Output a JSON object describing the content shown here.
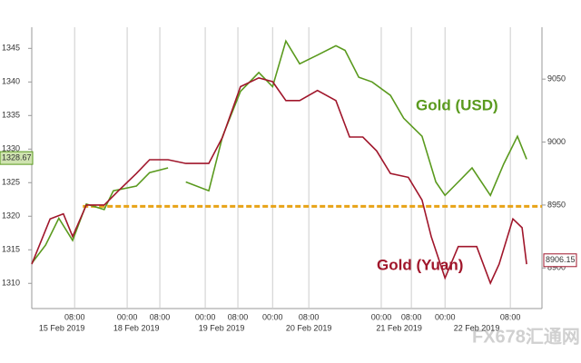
{
  "chart_data": {
    "type": "line",
    "xlim": [
      0,
      100
    ],
    "xticks": [
      {
        "value": 8.4,
        "label": "08:00"
      },
      {
        "value": 18.7,
        "label": "00:00"
      },
      {
        "value": 25.1,
        "label": "08:00"
      },
      {
        "value": 34,
        "label": "00:00"
      },
      {
        "value": 40.4,
        "label": "08:00"
      },
      {
        "value": 47.2,
        "label": "00:00"
      },
      {
        "value": 54.3,
        "label": "08:00"
      },
      {
        "value": 68.5,
        "label": "00:00"
      },
      {
        "value": 74.4,
        "label": "08:00"
      },
      {
        "value": 81,
        "label": "00:00"
      },
      {
        "value": 93.8,
        "label": "08:00"
      }
    ],
    "xticks_dates": [
      {
        "value": 5.9,
        "label": "15 Feb 2019"
      },
      {
        "value": 20.5,
        "label": "18 Feb 2019"
      },
      {
        "value": 37.2,
        "label": "19 Feb 2019"
      },
      {
        "value": 54.3,
        "label": "20 Feb 2019"
      },
      {
        "value": 72,
        "label": "21 Feb 2019"
      },
      {
        "value": 87.2,
        "label": "22 Feb 2019"
      }
    ],
    "ylim": [
      1307.6,
      1346.8
    ],
    "yticks": [
      1310,
      1315,
      1320,
      1325,
      1330,
      1335,
      1340,
      1345
    ],
    "y2lim": [
      8875,
      9084
    ],
    "y2ticks": [
      8900,
      8950,
      9000,
      9050
    ],
    "grid": true,
    "reference_line": {
      "value": 8949,
      "axis": "y2",
      "color": "#e8a317"
    },
    "series": [
      {
        "name": "Gold (USD)",
        "color": "#5a9a1e",
        "axis": "y",
        "last_value": 1328.67,
        "x": [
          0,
          2.7,
          5.3,
          8,
          10.7,
          14.2,
          16,
          20.5,
          23.1,
          26.7,
          28.5,
          30.2,
          34.7,
          37.4,
          40.9,
          44.5,
          47.2,
          49.8,
          52.5,
          56,
          59.6,
          61.4,
          64.1,
          66.7,
          70.3,
          72.9,
          76.5,
          79.2,
          81,
          83.6,
          86.3,
          89.9,
          92.5,
          95.2,
          97
        ],
        "values": [
          1313,
          1315.7,
          1319.7,
          1316.4,
          1321.8,
          1321,
          1323.8,
          1324.5,
          1326.5,
          1327.2,
          null,
          1325.1,
          1323.8,
          1331.9,
          1338.6,
          1341.4,
          1339.3,
          1346.1,
          1342.7,
          1344,
          1345.4,
          1344.7,
          1340.7,
          1340,
          1338,
          1334.6,
          1331.9,
          1325.1,
          1323.1,
          1325.1,
          1327.2,
          1323.1,
          1327.8,
          1331.9,
          1328.5
        ]
      },
      {
        "name": "Gold (Yuan)",
        "color": "#a0162b",
        "axis": "y2",
        "last_value": 8906.15,
        "x": [
          0,
          3.6,
          6.2,
          8,
          10.7,
          14.2,
          16.9,
          20.5,
          23.1,
          26.7,
          30.2,
          34.7,
          37.4,
          40.9,
          44.5,
          47.2,
          49.8,
          52.5,
          56,
          59.6,
          62.3,
          64.9,
          67.6,
          70.3,
          73.8,
          76.5,
          78.3,
          81,
          83.6,
          87.2,
          89.9,
          91.6,
          94.3,
          96.1,
          97
        ],
        "values": [
          8903,
          8939,
          8943,
          8925,
          8950,
          8950,
          8961,
          8975,
          8986,
          8986,
          8983,
          8983,
          9004,
          9044,
          9051,
          9048,
          9033,
          9033,
          9041,
          9033,
          9004,
          9004,
          8993,
          8975,
          8972,
          8954,
          8925,
          8892,
          8917,
          8917,
          8888,
          8903,
          8939,
          8932,
          8903
        ]
      }
    ],
    "watermark": "FX678汇通网"
  }
}
